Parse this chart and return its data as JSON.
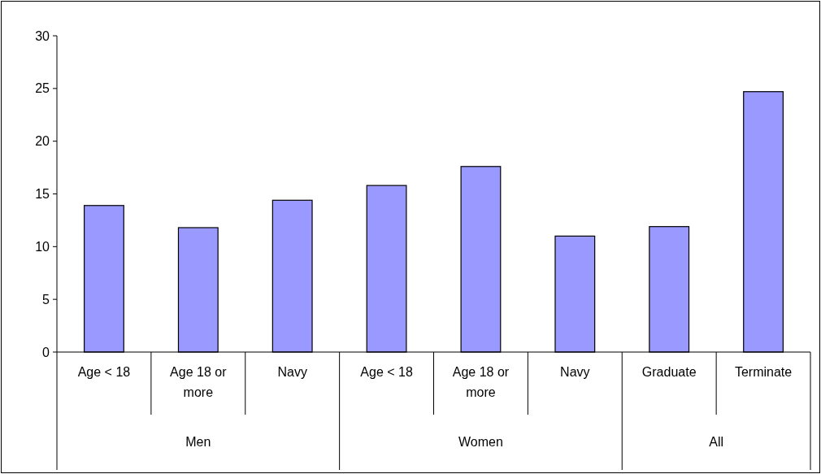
{
  "chart_data": {
    "type": "bar",
    "categories": [
      "Age < 18",
      "Age 18 or more",
      "Navy",
      "Age < 18",
      "Age 18 or more",
      "Navy",
      "Graduate",
      "Terminate"
    ],
    "values": [
      13.9,
      11.8,
      14.4,
      15.8,
      17.6,
      11.0,
      11.9,
      24.7
    ],
    "color": "#9999ff",
    "ylim": [
      0,
      30
    ],
    "yticks": [
      0,
      5,
      10,
      15,
      20,
      25,
      30
    ],
    "annotations": [
      "Men",
      "Women",
      "All"
    ]
  }
}
